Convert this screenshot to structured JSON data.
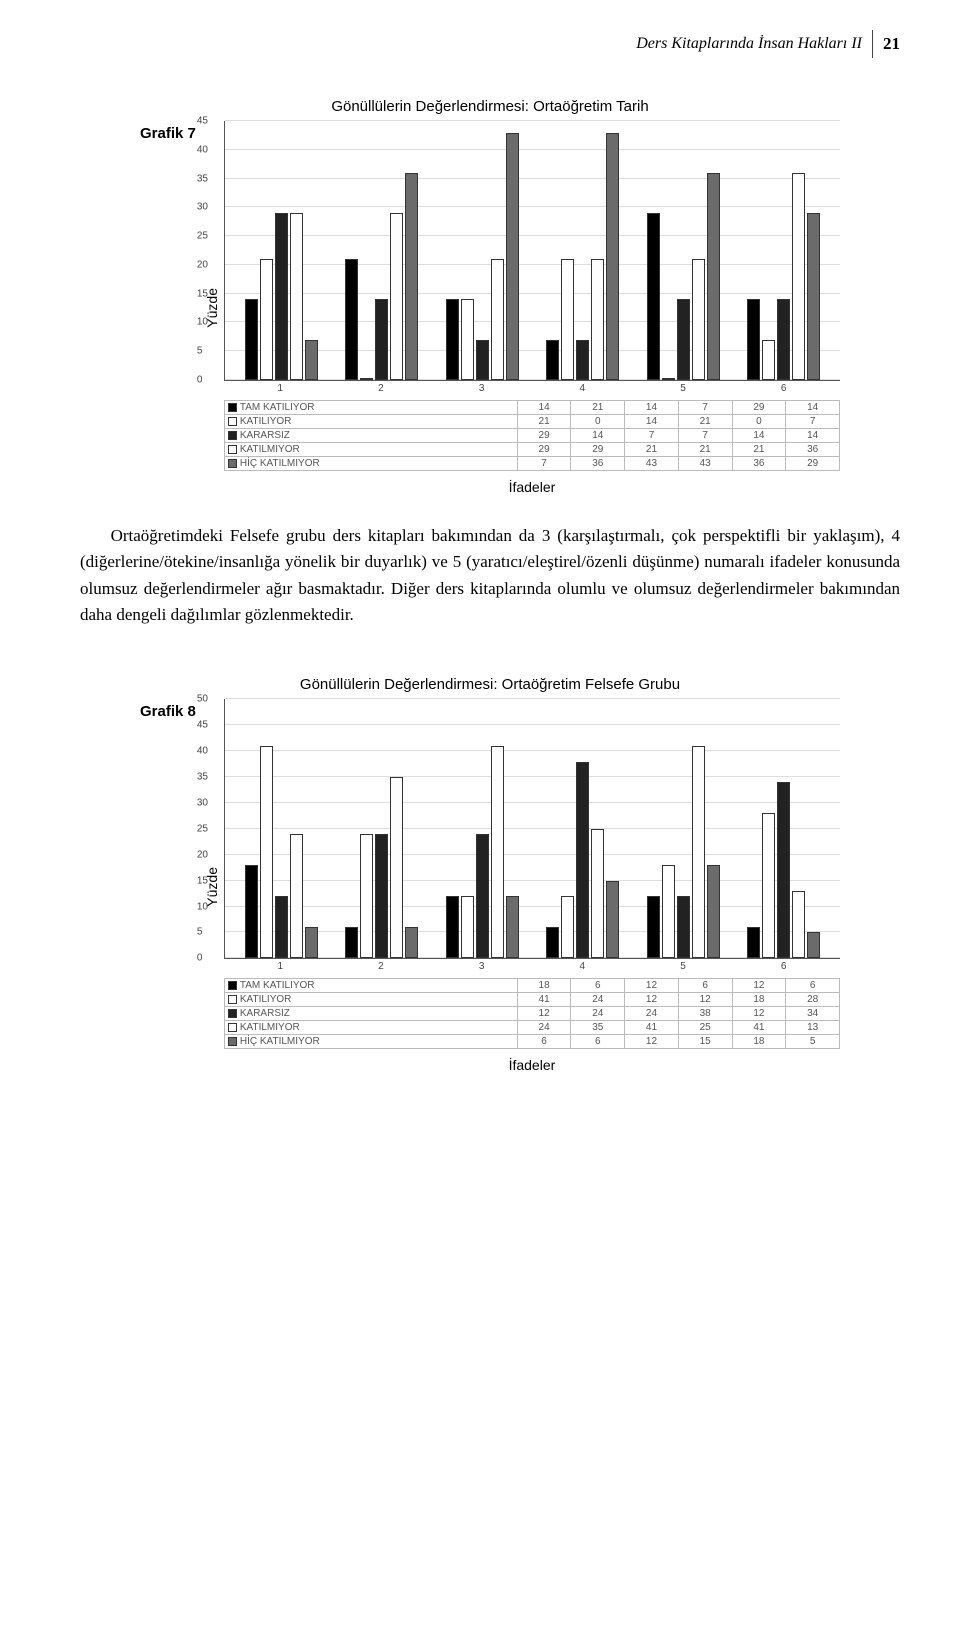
{
  "page": {
    "running_title": "Ders Kitaplarında İnsan Hakları  II",
    "page_number": "21"
  },
  "chart7": {
    "label": "Grafik 7",
    "title": "Gönüllülerin Değerlendirmesi: Ortaöğretim Tarih",
    "ylabel": "Yüzde",
    "xlabel": "İfadeler",
    "ymax": 45,
    "ytick_step": 5,
    "categories": [
      "1",
      "2",
      "3",
      "4",
      "5",
      "6"
    ],
    "series": [
      {
        "name": "TAM KATILIYOR",
        "color": "#000000",
        "values": [
          14,
          21,
          14,
          7,
          29,
          14
        ]
      },
      {
        "name": "KATILIYOR",
        "color": "#ffffff",
        "values": [
          21,
          0,
          14,
          21,
          0,
          7
        ]
      },
      {
        "name": "KARARSIZ",
        "color": "#222222",
        "values": [
          29,
          14,
          7,
          7,
          14,
          14
        ]
      },
      {
        "name": "KATILMIYOR",
        "color": "#fdfdfd",
        "values": [
          29,
          29,
          21,
          21,
          21,
          36
        ]
      },
      {
        "name": "HİÇ KATILMIYOR",
        "color": "#6b6b6b",
        "values": [
          7,
          36,
          43,
          43,
          36,
          29
        ]
      }
    ]
  },
  "paragraph": "Ortaöğretimdeki Felsefe grubu ders kitapları bakımından da 3 (karşılaştırmalı, çok perspektifli bir yaklaşım), 4 (diğerlerine/ötekine/insanlığa yönelik bir duyarlık) ve 5 (yaratıcı/eleştirel/özenli düşünme) numaralı ifadeler konusunda olumsuz değerlendirmeler ağır basmaktadır. Diğer ders kitaplarında olumlu ve olumsuz değerlendirmeler bakımından daha dengeli dağılımlar gözlenmektedir.",
  "chart8": {
    "label": "Grafik 8",
    "title": "Gönüllülerin Değerlendirmesi: Ortaöğretim Felsefe Grubu",
    "ylabel": "Yüzde",
    "xlabel": "İfadeler",
    "ymax": 50,
    "ytick_step": 5,
    "categories": [
      "1",
      "2",
      "3",
      "4",
      "5",
      "6"
    ],
    "series": [
      {
        "name": "TAM KATILIYOR",
        "color": "#000000",
        "values": [
          18,
          6,
          12,
          6,
          12,
          6
        ]
      },
      {
        "name": "KATILIYOR",
        "color": "#ffffff",
        "values": [
          41,
          24,
          12,
          12,
          18,
          28
        ]
      },
      {
        "name": "KARARSIZ",
        "color": "#222222",
        "values": [
          12,
          24,
          24,
          38,
          12,
          34
        ]
      },
      {
        "name": "KATILMIYOR",
        "color": "#fdfdfd",
        "values": [
          24,
          35,
          41,
          25,
          41,
          13
        ]
      },
      {
        "name": "HİÇ KATILMIYOR",
        "color": "#6b6b6b",
        "values": [
          6,
          6,
          12,
          15,
          18,
          5
        ]
      }
    ]
  }
}
